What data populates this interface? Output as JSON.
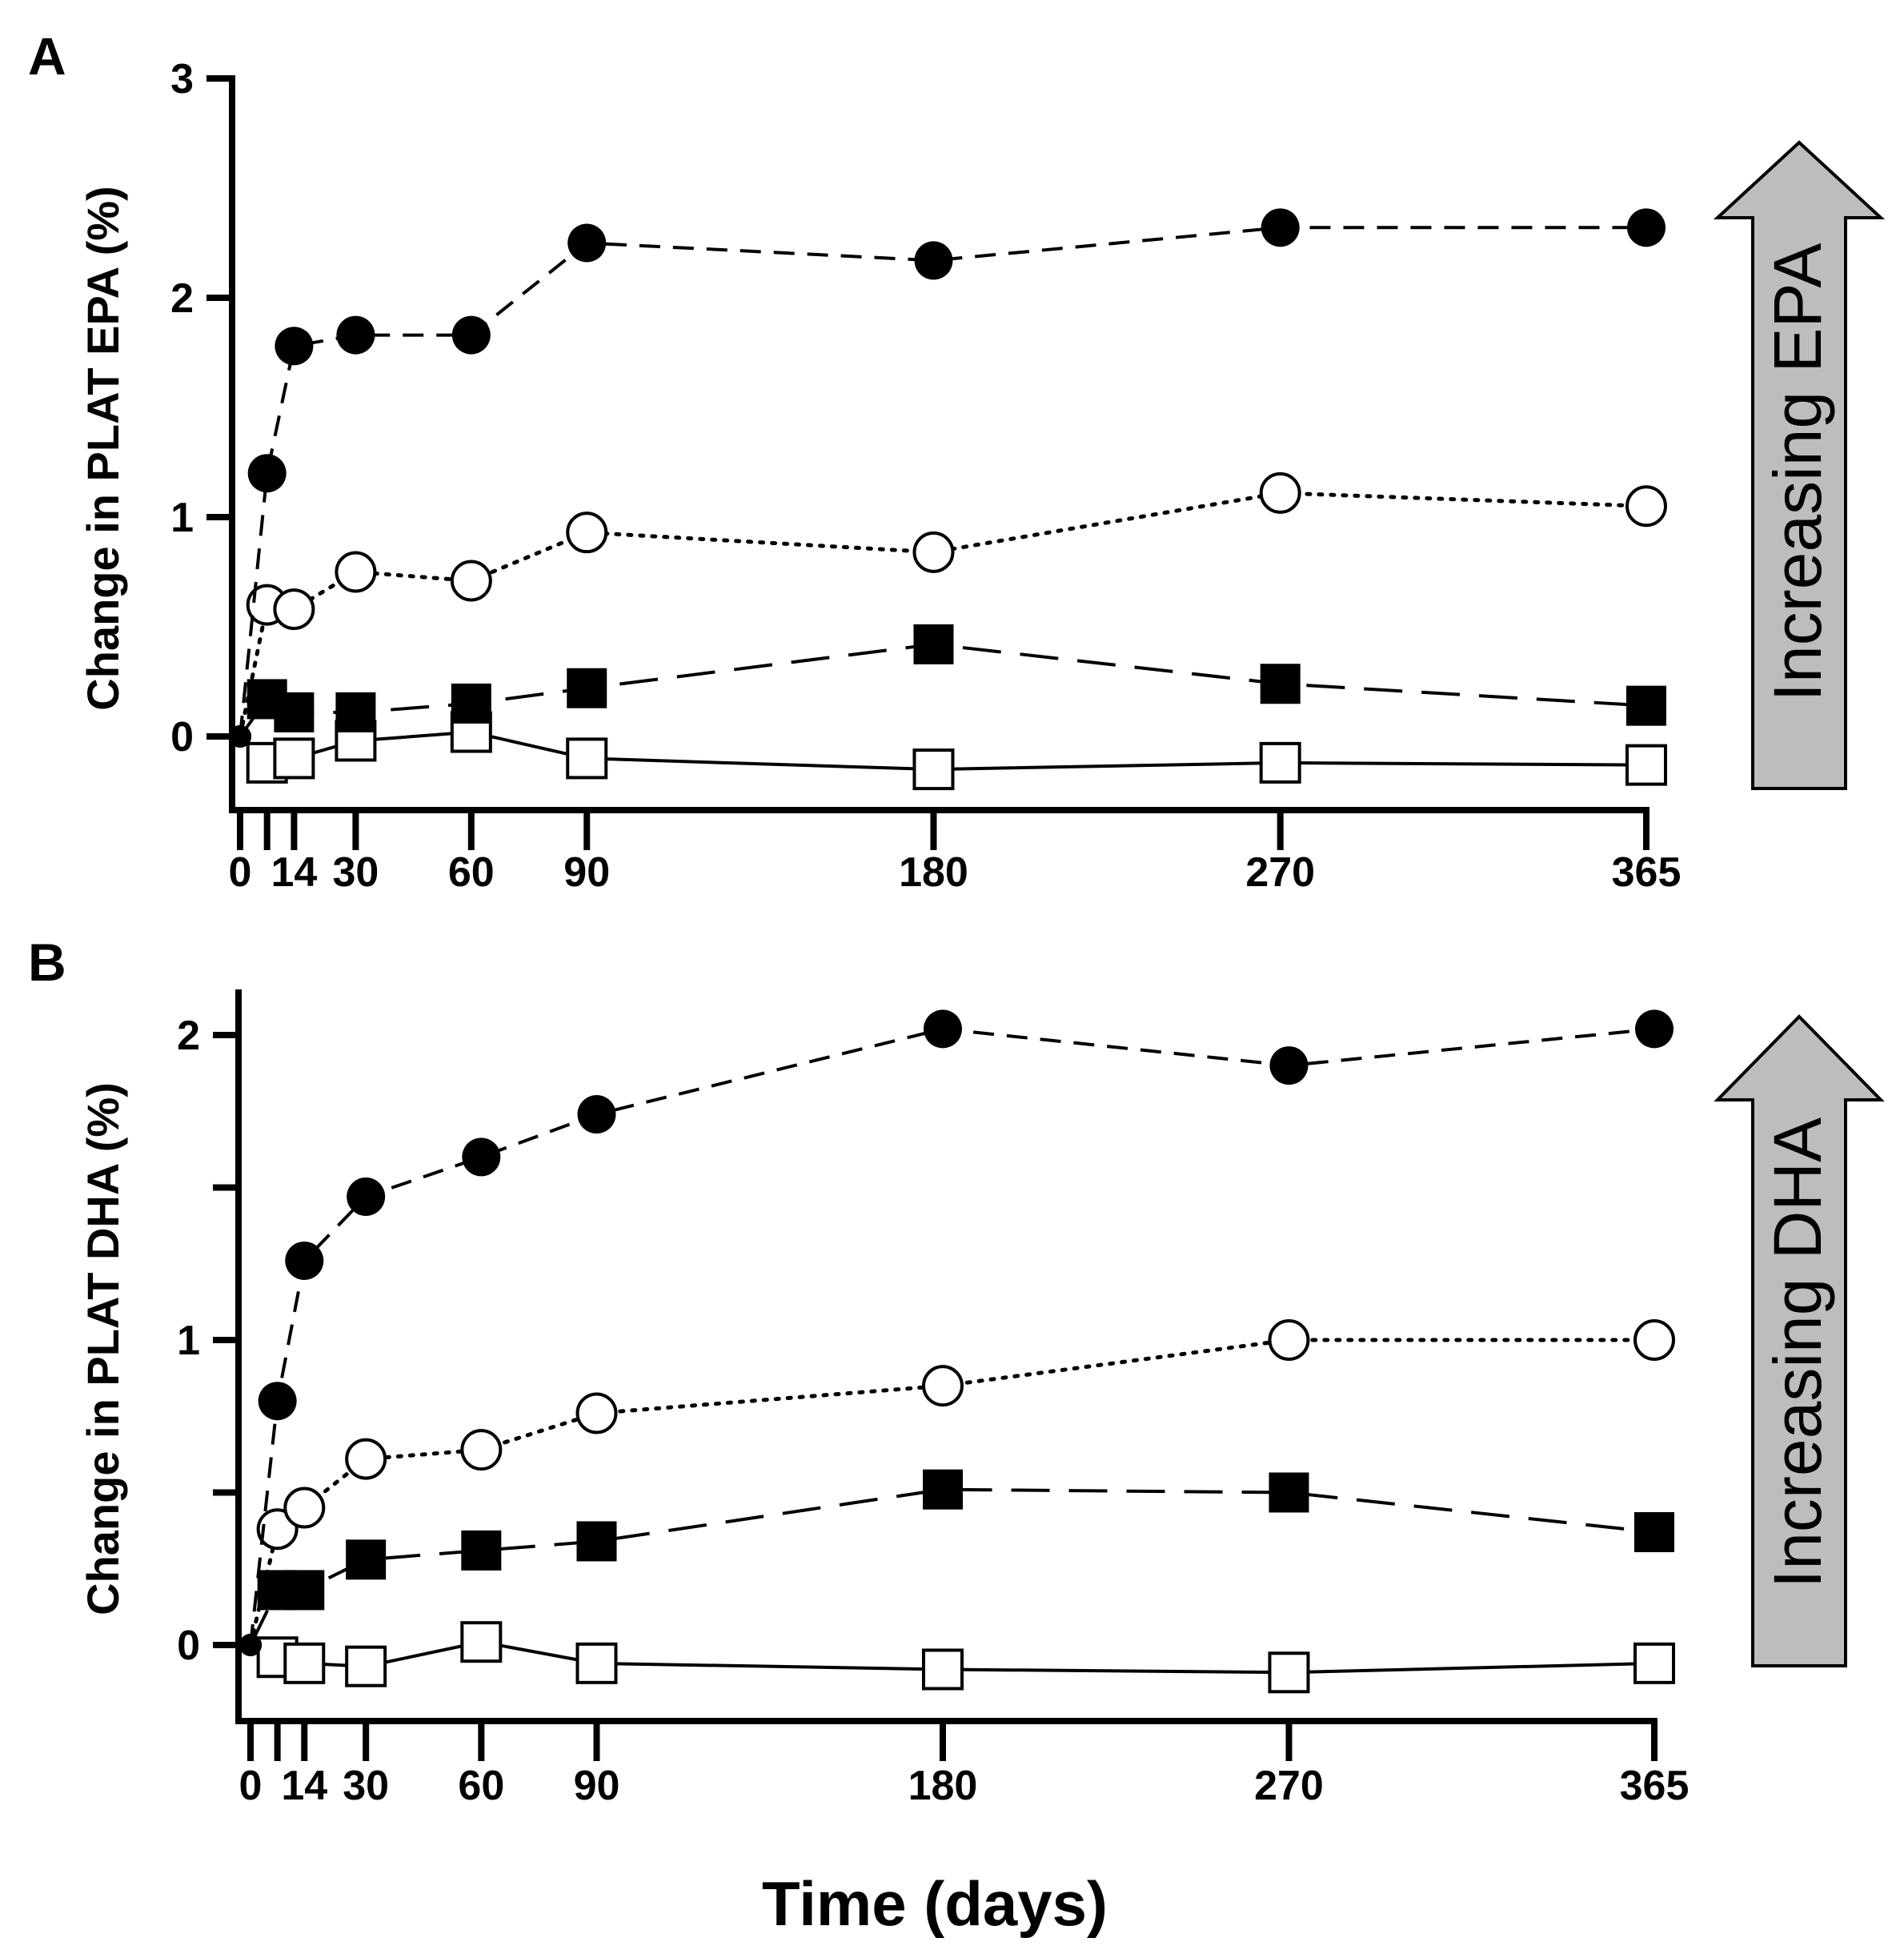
{
  "chart_data": [
    {
      "type": "line",
      "panel_label": "A",
      "title": "",
      "xlabel": "",
      "ylabel": "Change in PLAT EPA (%)",
      "x_ticks": [
        0,
        14,
        30,
        60,
        90,
        180,
        270,
        365
      ],
      "y_ticks": [
        0,
        1,
        2,
        3
      ],
      "ylim": [
        -0.35,
        3
      ],
      "arrow_label": "Increasing EPA",
      "x": [
        0,
        7,
        14,
        30,
        60,
        90,
        180,
        270,
        365
      ],
      "series": [
        {
          "marker": "filled-circle",
          "line": "dashed",
          "values": [
            0,
            1.2,
            1.78,
            1.83,
            1.83,
            2.25,
            2.17,
            2.32,
            2.32
          ]
        },
        {
          "marker": "open-circle",
          "line": "dotted",
          "values": [
            0,
            0.6,
            0.58,
            0.75,
            0.71,
            0.93,
            0.84,
            1.11,
            1.05
          ]
        },
        {
          "marker": "filled-square",
          "line": "long-dashed",
          "values": [
            0,
            0.17,
            0.11,
            0.11,
            0.15,
            0.22,
            0.42,
            0.24,
            0.14
          ]
        },
        {
          "marker": "open-square",
          "line": "solid",
          "values": [
            0,
            -0.12,
            -0.1,
            -0.02,
            0.02,
            -0.1,
            -0.15,
            -0.12,
            -0.13
          ]
        }
      ]
    },
    {
      "type": "line",
      "panel_label": "B",
      "title": "",
      "xlabel": "Time (days)",
      "ylabel": "Change in PLAT DHA (%)",
      "x_ticks": [
        0,
        14,
        30,
        60,
        90,
        180,
        270,
        365
      ],
      "y_ticks": [
        0,
        0.5,
        1,
        1.5,
        2
      ],
      "y_tick_labels": [
        "0",
        "",
        "1",
        "",
        "2"
      ],
      "ylim": [
        -0.25,
        2.12
      ],
      "arrow_label": "Increasing DHA",
      "x": [
        0,
        7,
        14,
        30,
        60,
        90,
        180,
        270,
        365
      ],
      "series": [
        {
          "marker": "filled-circle",
          "line": "dashed",
          "values": [
            0,
            0.8,
            1.26,
            1.47,
            1.6,
            1.74,
            2.02,
            1.9,
            2.02
          ]
        },
        {
          "marker": "open-circle",
          "line": "dotted",
          "values": [
            0,
            0.38,
            0.45,
            0.61,
            0.64,
            0.76,
            0.85,
            1.0,
            1.0
          ]
        },
        {
          "marker": "filled-square",
          "line": "long-dashed",
          "values": [
            0,
            0.18,
            0.18,
            0.28,
            0.31,
            0.34,
            0.51,
            0.5,
            0.37
          ]
        },
        {
          "marker": "open-square",
          "line": "solid",
          "values": [
            0,
            -0.04,
            -0.06,
            -0.07,
            0.01,
            -0.06,
            -0.08,
            -0.09,
            -0.06
          ]
        }
      ]
    }
  ]
}
